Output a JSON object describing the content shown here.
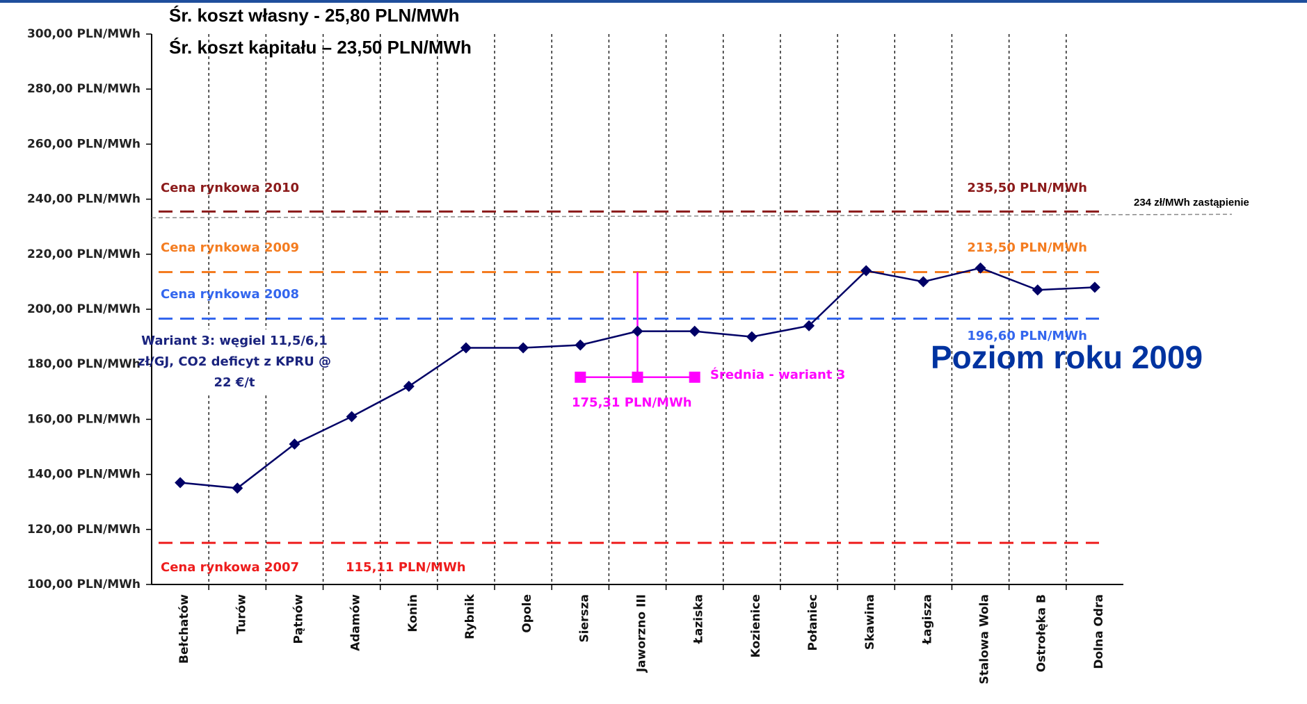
{
  "chart_data": {
    "type": "line",
    "title_lines": [
      "Śr. koszt własny  - 25,80 PLN/MWh",
      "Śr. koszt kapitału – 23,50 PLN/MWh"
    ],
    "categories": [
      "Bełchatów",
      "Turów",
      "Pątnów",
      "Adamów",
      "Konin",
      "Rybnik",
      "Opole",
      "Siersza",
      "Jaworzno III",
      "Łaziska",
      "Kozienice",
      "Połaniec",
      "Skawina",
      "Łagisza",
      "Stalowa Wola",
      "Ostrołęka B",
      "Dolna Odra"
    ],
    "series": [
      {
        "color": "#000066",
        "values": [
          137,
          135,
          151,
          161,
          172,
          186,
          186,
          187,
          192,
          192,
          190,
          194,
          214,
          210,
          215,
          207,
          208
        ]
      }
    ],
    "ylim": [
      100,
      300
    ],
    "yticks": [
      {
        "value": 100,
        "label": "100,00 PLN/MWh"
      },
      {
        "value": 120,
        "label": "120,00 PLN/MWh"
      },
      {
        "value": 140,
        "label": "140,00 PLN/MWh"
      },
      {
        "value": 160,
        "label": "160,00 PLN/MWh"
      },
      {
        "value": 180,
        "label": "180,00 PLN/MWh"
      },
      {
        "value": 200,
        "label": "200,00 PLN/MWh"
      },
      {
        "value": 220,
        "label": "220,00 PLN/MWh"
      },
      {
        "value": 240,
        "label": "240,00 PLN/MWh"
      },
      {
        "value": 260,
        "label": "260,00 PLN/MWh"
      },
      {
        "value": 280,
        "label": "280,00 PLN/MWh"
      },
      {
        "value": 300,
        "label": "300,00 PLN/MWh"
      }
    ],
    "reference_lines": [
      {
        "name": "Cena rynkowa 2010",
        "value": 235.5,
        "value_label": "235,50 PLN/MWh",
        "color": "#8b1a1a"
      },
      {
        "name": "Cena rynkowa 2009",
        "value": 213.5,
        "value_label": "213,50 PLN/MWh",
        "color": "#f47c20"
      },
      {
        "name": "Cena rynkowa 2008",
        "value": 196.6,
        "value_label": "196,60 PLN/MWh",
        "color": "#3366ee"
      },
      {
        "name": "Cena rynkowa 2007",
        "value": 115.11,
        "value_label": "115,11 PLN/MWh",
        "color": "#ee1c1c"
      },
      {
        "name": "234 zł/MWh zastąpienie",
        "value": 234,
        "color": "#888888"
      }
    ],
    "mean": {
      "name": "Średnia - wariant 3",
      "value": 175.31,
      "value_label": "175,31 PLN/MWh",
      "color": "#ff00ff"
    },
    "annotations": {
      "variant": [
        "Wariant 3: węgiel 11,5/6,1",
        "zł/GJ, CO2 deficyt z KPRU @",
        "22 €/t"
      ],
      "level": "Poziom roku 2009"
    }
  }
}
